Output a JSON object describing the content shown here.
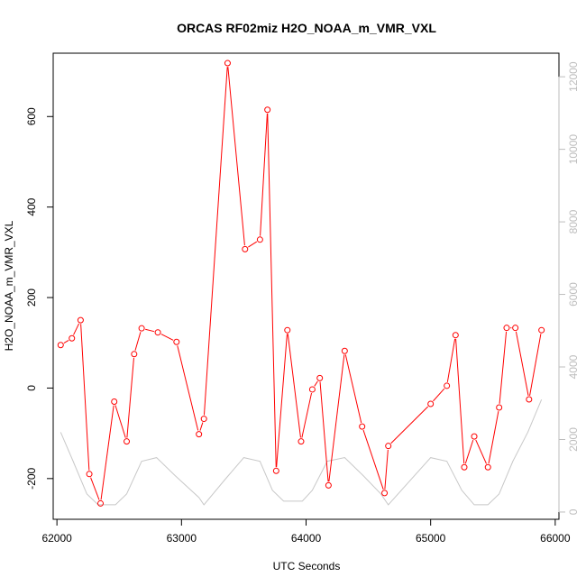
{
  "chart_data": {
    "type": "line",
    "title": "ORCAS RF02miz H2O_NOAA_m_VMR_VXL",
    "xlabel": "UTC Seconds",
    "ylabel": "H2O_NOAA_m_VMR_VXL",
    "xlim": [
      61970,
      66030
    ],
    "ylim": [
      -290,
      740
    ],
    "y2lim": [
      -200,
      12650
    ],
    "x_ticks": [
      62000,
      63000,
      64000,
      65000,
      66000
    ],
    "x_tick_labels": [
      "62000",
      "63000",
      "64000",
      "65000",
      "66000"
    ],
    "y_ticks": [
      -200,
      0,
      200,
      400,
      600
    ],
    "y_tick_labels": [
      "-200",
      "0",
      "200",
      "400",
      "600"
    ],
    "y2_ticks": [
      0,
      2000,
      4000,
      6000,
      8000,
      10000,
      12000
    ],
    "y2_tick_labels": [
      "0",
      "2000",
      "4000",
      "6000",
      "8000",
      "10000",
      "12000"
    ],
    "grid": false,
    "series": [
      {
        "axis": "left",
        "color": "#ff0000",
        "style": "line+points",
        "x": [
          62030,
          62120,
          62190,
          62260,
          62350,
          62460,
          62560,
          62620,
          62680,
          62810,
          62960,
          63140,
          63180,
          63370,
          63510,
          63630,
          63690,
          63760,
          63850,
          63960,
          64050,
          64110,
          64180,
          64310,
          64450,
          64630,
          64660,
          65000,
          65130,
          65200,
          65270,
          65350,
          65460,
          65550,
          65610,
          65680,
          65790,
          65890
        ],
        "values": [
          95,
          110,
          150,
          -190,
          -255,
          -30,
          -118,
          75,
          132,
          123,
          102,
          -102,
          -68,
          718,
          307,
          328,
          615,
          -183,
          128,
          -118,
          -3,
          22,
          -215,
          82,
          -85,
          -232,
          -128,
          -35,
          5,
          117,
          -175,
          -107,
          -175,
          -43,
          133,
          133,
          -25,
          128
        ]
      },
      {
        "axis": "right",
        "color": "#c8c8c8",
        "style": "line",
        "x": [
          62030,
          62130,
          62240,
          62330,
          62470,
          62560,
          62680,
          62800,
          62950,
          63140,
          63180,
          63350,
          63500,
          63630,
          63730,
          63820,
          63970,
          64050,
          64170,
          64310,
          64460,
          64600,
          64660,
          65000,
          65130,
          65250,
          65350,
          65460,
          65550,
          65660,
          65780,
          65890
        ],
        "values": [
          2200,
          1400,
          500,
          200,
          200,
          500,
          1400,
          1500,
          1000,
          400,
          200,
          900,
          1500,
          1400,
          600,
          300,
          300,
          600,
          1400,
          1500,
          1000,
          500,
          200,
          1500,
          1400,
          600,
          200,
          200,
          500,
          1400,
          2200,
          3100
        ]
      }
    ]
  }
}
